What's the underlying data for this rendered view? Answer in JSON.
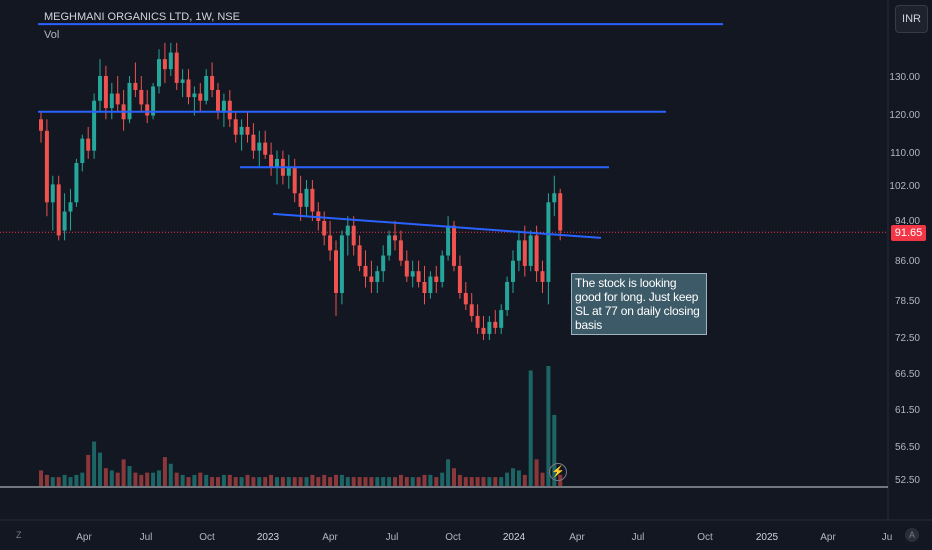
{
  "header": {
    "title": "MEGHMANI ORGANICS LTD, 1W, NSE",
    "vol_label": "Vol"
  },
  "currency_button": "INR",
  "last_price_label": "91.65",
  "annotation": "The stock is looking good for long. Just keep SL at 77 on daily closing basis",
  "corner_left": "Z",
  "corner_right": "A",
  "flash_icon_glyph": "⚡",
  "colors": {
    "background": "#131722",
    "up": "#26a69a",
    "down": "#ef5350",
    "trendline": "#2962ff",
    "last_price": "#f23645"
  },
  "chart_data": {
    "type": "candlestick",
    "title": "MEGHMANI ORGANICS LTD, 1W, NSE",
    "timeframe": "1W",
    "y_axis_ticks": [
      "130.00",
      "120.00",
      "110.00",
      "102.00",
      "94.00",
      "86.00",
      "78.50",
      "72.50",
      "66.50",
      "61.50",
      "56.50",
      "52.50"
    ],
    "y_axis_scale": "log",
    "ylim": [
      51.5,
      146
    ],
    "x_axis_labels": [
      "Apr",
      "Jul",
      "Oct",
      "2023",
      "Apr",
      "Jul",
      "Oct",
      "2024",
      "Apr",
      "Jul",
      "Oct",
      "2025",
      "Apr",
      "Ju"
    ],
    "last_price": 91.65,
    "horizontal_lines": [
      {
        "name": "resistance-top",
        "price": 146
      },
      {
        "name": "resistance-120",
        "price": 120
      },
      {
        "name": "resistance-106",
        "price": 106
      }
    ],
    "trendline": {
      "start": {
        "date": "2023-01",
        "price": 95.5
      },
      "end": {
        "date": "2024-03",
        "price": 90.5
      }
    },
    "series": [
      {
        "name": "price",
        "candles": [
          [
            118,
            120,
            112,
            115
          ],
          [
            115,
            118,
            95,
            98
          ],
          [
            98,
            104,
            92,
            102
          ],
          [
            102,
            104,
            90,
            91
          ],
          [
            92,
            100,
            90,
            96
          ],
          [
            96,
            101,
            92,
            98
          ],
          [
            98,
            108,
            97,
            107
          ],
          [
            107,
            114,
            105,
            113
          ],
          [
            113,
            116,
            108,
            110
          ],
          [
            110,
            125,
            108,
            123
          ],
          [
            123,
            135,
            120,
            130
          ],
          [
            130,
            133,
            118,
            121
          ],
          [
            121,
            128,
            118,
            125
          ],
          [
            125,
            130,
            120,
            122
          ],
          [
            122,
            126,
            115,
            118
          ],
          [
            118,
            130,
            117,
            128
          ],
          [
            128,
            134,
            124,
            126
          ],
          [
            126,
            130,
            120,
            122
          ],
          [
            122,
            126,
            117,
            119
          ],
          [
            119,
            128,
            118,
            127
          ],
          [
            127,
            138,
            125,
            135
          ],
          [
            135,
            140,
            128,
            132
          ],
          [
            132,
            140,
            130,
            137
          ],
          [
            137,
            140,
            126,
            128
          ],
          [
            128,
            132,
            124,
            129
          ],
          [
            129,
            132,
            122,
            124
          ],
          [
            124,
            127,
            119,
            125
          ],
          [
            125,
            128,
            120,
            123
          ],
          [
            123,
            132,
            122,
            130
          ],
          [
            130,
            134,
            124,
            126
          ],
          [
            126,
            128,
            118,
            120
          ],
          [
            120,
            125,
            116,
            123
          ],
          [
            123,
            126,
            116,
            118
          ],
          [
            118,
            120,
            112,
            114
          ],
          [
            114,
            118,
            110,
            116
          ],
          [
            116,
            120,
            112,
            114
          ],
          [
            114,
            117,
            108,
            110
          ],
          [
            110,
            115,
            106,
            112
          ],
          [
            112,
            115,
            108,
            109
          ],
          [
            109,
            112,
            104,
            106
          ],
          [
            106,
            110,
            102,
            108
          ],
          [
            108,
            110,
            102,
            104
          ],
          [
            104,
            109,
            101,
            106
          ],
          [
            106,
            108,
            98,
            100
          ],
          [
            100,
            104,
            94,
            97
          ],
          [
            97,
            103,
            95,
            101
          ],
          [
            101,
            103,
            94,
            96
          ],
          [
            96,
            98,
            92,
            94
          ],
          [
            94,
            96,
            89,
            91
          ],
          [
            91,
            94,
            86,
            88
          ],
          [
            88,
            90,
            76,
            80
          ],
          [
            80,
            92,
            78,
            91
          ],
          [
            91,
            95,
            87,
            93
          ],
          [
            93,
            95,
            87,
            89
          ],
          [
            89,
            91,
            84,
            85
          ],
          [
            85,
            88,
            81,
            83
          ],
          [
            83,
            86,
            80,
            82
          ],
          [
            82,
            85,
            80,
            84
          ],
          [
            84,
            89,
            82,
            87
          ],
          [
            87,
            92,
            86,
            91
          ],
          [
            91,
            94,
            88,
            90
          ],
          [
            90,
            92,
            85,
            86
          ],
          [
            86,
            88,
            82,
            83
          ],
          [
            83,
            86,
            81,
            84
          ],
          [
            84,
            86,
            81,
            82
          ],
          [
            82,
            85,
            78,
            80
          ],
          [
            80,
            84,
            79,
            83
          ],
          [
            83,
            85,
            80,
            82
          ],
          [
            82,
            88,
            81,
            87
          ],
          [
            87,
            95,
            86,
            93
          ],
          [
            93,
            94,
            84,
            85
          ],
          [
            85,
            87,
            79,
            80
          ],
          [
            80,
            82,
            77,
            78
          ],
          [
            78,
            80,
            75,
            76
          ],
          [
            76,
            78,
            73,
            74
          ],
          [
            74,
            76,
            72,
            73
          ],
          [
            73,
            76,
            72,
            75
          ],
          [
            75,
            77,
            73,
            74
          ],
          [
            74,
            78,
            73,
            77
          ],
          [
            77,
            83,
            76,
            82
          ],
          [
            82,
            88,
            80,
            86
          ],
          [
            86,
            92,
            84,
            90
          ],
          [
            90,
            93,
            83,
            85
          ],
          [
            85,
            92,
            84,
            91
          ],
          [
            91,
            93,
            82,
            84
          ],
          [
            84,
            86,
            80,
            82
          ],
          [
            82,
            100,
            78,
            98
          ],
          [
            98,
            104,
            95,
            100
          ],
          [
            100,
            101,
            90,
            92
          ]
        ]
      },
      {
        "name": "volume",
        "values": [
          7,
          5,
          4,
          4,
          5,
          4,
          5,
          6,
          14,
          20,
          15,
          8,
          7,
          6,
          12,
          9,
          6,
          5,
          6,
          6,
          7,
          13,
          10,
          6,
          5,
          4,
          5,
          6,
          5,
          4,
          4,
          5,
          5,
          4,
          4,
          5,
          4,
          4,
          4,
          5,
          4,
          4,
          4,
          4,
          4,
          4,
          5,
          4,
          5,
          4,
          5,
          5,
          4,
          4,
          4,
          4,
          4,
          4,
          4,
          4,
          4,
          5,
          4,
          4,
          4,
          5,
          5,
          4,
          6,
          12,
          8,
          5,
          4,
          4,
          4,
          4,
          4,
          4,
          4,
          6,
          8,
          7,
          5,
          52,
          12,
          6,
          54,
          32,
          5
        ]
      }
    ]
  }
}
